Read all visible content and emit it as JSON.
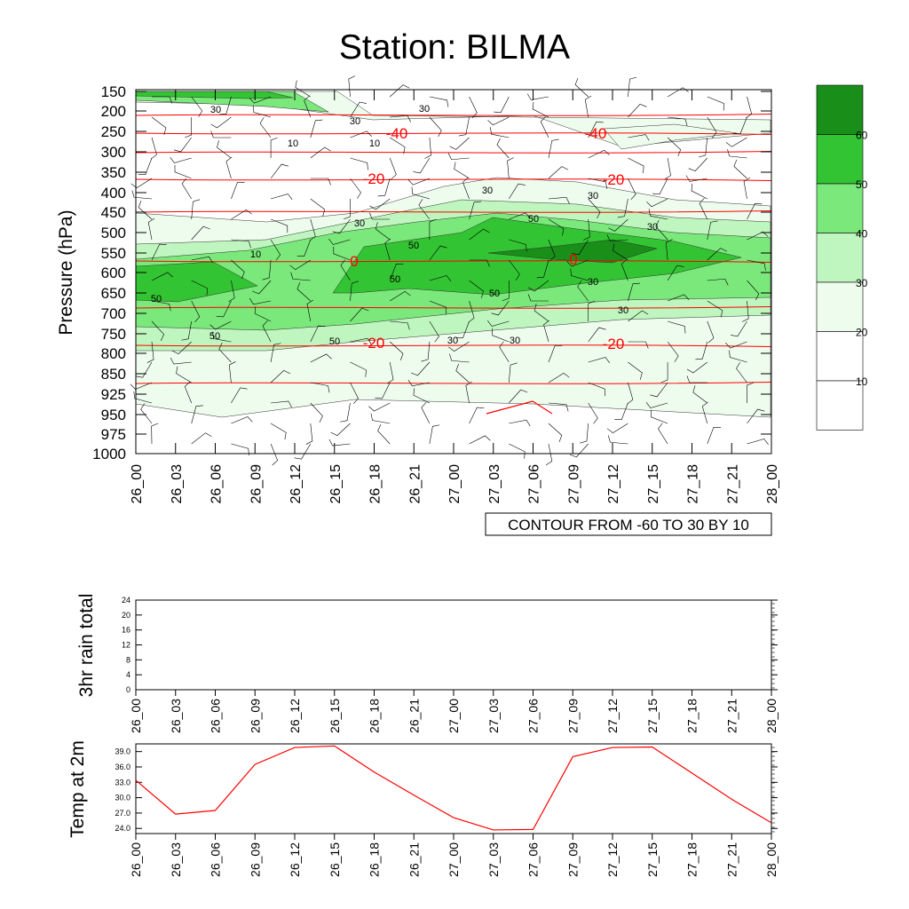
{
  "title": "Station: BILMA",
  "colors": {
    "green_levels": [
      "#ffffff",
      "#ffffff",
      "#eefcee",
      "#bff6bf",
      "#7ae87a",
      "#33c433",
      "#198e19"
    ],
    "isotherm": "#ff0000",
    "barb": "#000000"
  },
  "chart_data": [
    {
      "type": "heatmap",
      "ylabel": "Pressure (hPa)",
      "yticks": [
        "150",
        "200",
        "250",
        "300",
        "350",
        "400",
        "450",
        "500",
        "550",
        "600",
        "650",
        "700",
        "750",
        "800",
        "850",
        "925",
        "950",
        "975",
        "1000"
      ],
      "xticks": [
        "26_00",
        "26_03",
        "26_06",
        "26_09",
        "26_12",
        "26_15",
        "26_18",
        "26_21",
        "27_00",
        "27_03",
        "27_06",
        "27_09",
        "27_12",
        "27_15",
        "27_18",
        "27_21",
        "28_00"
      ],
      "contour_note": "CONTOUR FROM -60 TO 30 BY 10",
      "colorbar_levels": [
        "10",
        "20",
        "30",
        "40",
        "50",
        "60"
      ],
      "humidity_labels": [
        "30",
        "30",
        "30",
        "10",
        "10",
        "10",
        "30",
        "30",
        "50",
        "50",
        "50",
        "50",
        "50",
        "50",
        "30",
        "30",
        "30",
        "30",
        "30",
        "30",
        "50"
      ],
      "temperature_labels": [
        "-40",
        "-40",
        "-20",
        "-20",
        "0",
        "0",
        "-20",
        "-20"
      ],
      "isotherms_hPa": [
        213,
        253,
        304,
        369,
        442,
        570,
        680,
        780,
        870
      ]
    },
    {
      "type": "line",
      "ylabel": "3hr rain total",
      "yticks": [
        "0",
        "4",
        "8",
        "12",
        "16",
        "20",
        "24"
      ],
      "ylim": [
        0,
        24
      ],
      "xticks": [
        "26_00",
        "26_03",
        "26_06",
        "26_09",
        "26_12",
        "26_15",
        "26_18",
        "26_21",
        "27_00",
        "27_03",
        "27_06",
        "27_09",
        "27_12",
        "27_15",
        "27_18",
        "27_21",
        "28_00"
      ],
      "values": [
        0,
        0,
        0,
        0,
        0,
        0,
        0,
        0,
        0,
        0,
        0,
        0,
        0,
        0,
        0,
        0,
        0
      ]
    },
    {
      "type": "line",
      "ylabel": "Temp at 2m",
      "yticks": [
        "24.0",
        "27.0",
        "30.0",
        "33.0",
        "36.0",
        "39.0"
      ],
      "ylim": [
        23.0,
        40.5
      ],
      "xticks": [
        "26_00",
        "26_03",
        "26_06",
        "26_09",
        "26_12",
        "26_15",
        "26_18",
        "26_21",
        "27_00",
        "27_03",
        "27_06",
        "27_09",
        "27_12",
        "27_15",
        "27_18",
        "27_21",
        "28_00"
      ],
      "values": [
        33.4,
        26.8,
        27.5,
        36.5,
        39.8,
        40.1,
        35.0,
        30.5,
        26.1,
        23.7,
        23.8,
        38.0,
        39.8,
        39.9,
        34.8,
        29.7,
        25.1
      ]
    }
  ]
}
